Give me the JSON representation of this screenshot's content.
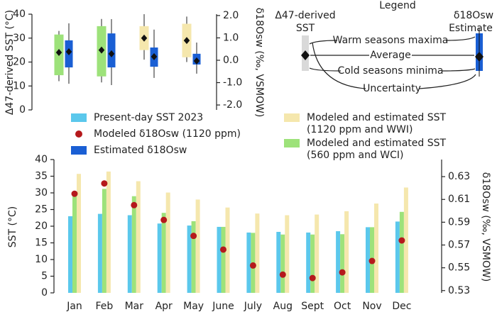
{
  "chart_data": [
    {
      "type": "box",
      "ylabel": "Δ47-derived SST (°C)",
      "y2label": "δ18Osw (‰, VSMOW)",
      "ylim": [
        0,
        40
      ],
      "yticks": [
        0,
        10,
        20,
        30,
        40
      ],
      "y2lim": [
        -2.22,
        2.06
      ],
      "y2ticks": [
        {
          "value": -2,
          "label": "-2.0"
        },
        {
          "value": -1,
          "label": "-1.0"
        },
        {
          "value": 0,
          "label": "0.0"
        },
        {
          "value": 1,
          "label": "1.0"
        },
        {
          "value": 2,
          "label": "2.0"
        }
      ],
      "series": [
        {
          "axis": "y",
          "boxes": [
            {
              "color": "#9de27a",
              "whisker_low": 12,
              "box_low": 14.5,
              "mean": 24,
              "box_high": 31.5,
              "whisker_high": 33
            },
            {
              "color": "#9de27a",
              "whisker_low": 11.5,
              "box_low": 14,
              "mean": 25,
              "box_high": 35,
              "whisker_high": 38
            },
            {
              "color": "#f5e7ad",
              "whisker_low": 21,
              "box_low": 25,
              "mean": 30,
              "box_high": 35,
              "whisker_high": 40
            },
            {
              "color": "#f5e7ad",
              "whisker_low": 20,
              "box_low": 22,
              "mean": 29,
              "box_high": 36,
              "whisker_high": 39
            }
          ]
        },
        {
          "name": "Estimated δ18Osw",
          "color": "#1a5fd4",
          "axis": "y2",
          "boxes": [
            {
              "whisker_low": -1.05,
              "box_low": -0.32,
              "mean": 0.38,
              "box_high": 0.89,
              "whisker_high": 1.65
            },
            {
              "whisker_low": -1.11,
              "box_low": -0.32,
              "mean": 0.29,
              "box_high": 1.2,
              "whisker_high": 1.84
            },
            {
              "whisker_low": -0.79,
              "box_low": -0.29,
              "mean": 0.16,
              "box_high": 0.57,
              "whisker_high": 1.37
            },
            {
              "whisker_low": -0.6,
              "box_low": -0.19,
              "mean": -0.03,
              "box_high": 0.29,
              "whisker_high": 0.79
            }
          ]
        }
      ]
    },
    {
      "type": "bar",
      "ylabel": "SST (°C)",
      "y2label": "δ18Osw (‰, VSMOW)",
      "categories": [
        "Jan",
        "Feb",
        "Mar",
        "Apr",
        "May",
        "June",
        "July",
        "Aug",
        "Sept",
        "Oct",
        "Nov",
        "Dec"
      ],
      "ylim": [
        0,
        40
      ],
      "yticks": [
        0,
        5,
        10,
        15,
        20,
        25,
        30,
        35,
        40
      ],
      "y2lim": [
        0.528,
        0.645
      ],
      "y2ticks": [
        0.53,
        0.55,
        0.57,
        0.59,
        0.61,
        0.63
      ],
      "series": [
        {
          "name": "Present-day SST 2023",
          "type": "bar",
          "color": "#5bc8ec",
          "values": [
            23,
            23.7,
            23.3,
            20.8,
            20.2,
            19.8,
            18.1,
            18.3,
            18.1,
            18.5,
            19.7,
            21.4
          ]
        },
        {
          "name": "Modeled and estimated SST (560 ppm and WCI)",
          "type": "bar",
          "color": "#9de27a",
          "values": [
            30,
            31.2,
            29,
            24,
            21.5,
            19.8,
            18,
            17.5,
            17.5,
            17.6,
            19.7,
            24.3
          ]
        },
        {
          "name": "Modeled and estimated SST (1120 ppm and WWI)",
          "type": "bar",
          "color": "#f5e7ad",
          "values": [
            35.7,
            36.4,
            33.5,
            30.1,
            28,
            25.6,
            23.8,
            23.3,
            23.5,
            24.5,
            26.8,
            31.6
          ]
        },
        {
          "name": "Modeled δ18Osw (1120 ppm)",
          "type": "scatter",
          "axis": "y2",
          "color": "#b5191c",
          "values": [
            0.615,
            0.624,
            0.605,
            0.592,
            0.578,
            0.566,
            0.552,
            0.544,
            0.541,
            0.546,
            0.556,
            0.574
          ]
        }
      ]
    }
  ],
  "inset_legend": {
    "title": "Legend",
    "left_label": [
      "Δ47-derived",
      "SST"
    ],
    "right_label": [
      "δ18Osw",
      "Estimate"
    ],
    "items": [
      "Warm seasons maxima",
      "Average",
      "Cold seasons minima",
      "Uncertainty"
    ]
  }
}
